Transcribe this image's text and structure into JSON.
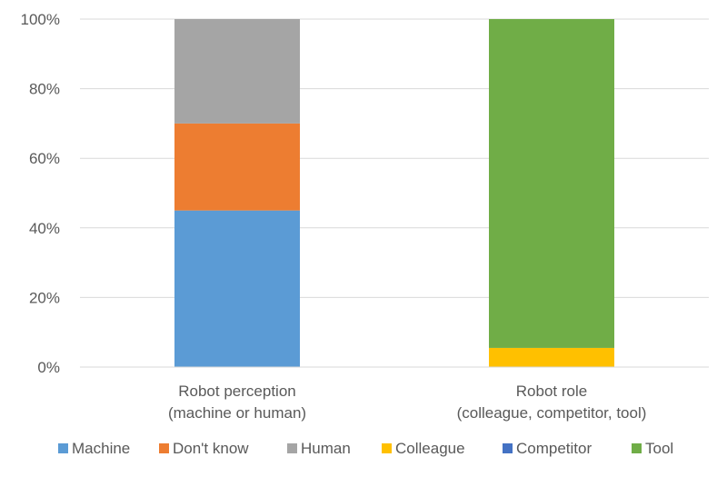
{
  "chart_data": {
    "type": "bar",
    "stacked": true,
    "percent": true,
    "categories": [
      [
        "Robot perception",
        "(machine or human)"
      ],
      [
        "Robot role",
        "(colleague, competitor, tool)"
      ]
    ],
    "series": [
      {
        "name": "Machine",
        "color": "#5b9bd5",
        "values": [
          45,
          0
        ]
      },
      {
        "name": "Don't know",
        "color": "#ed7d31",
        "values": [
          25,
          0
        ]
      },
      {
        "name": "Human",
        "color": "#a5a5a5",
        "values": [
          30,
          0
        ]
      },
      {
        "name": "Colleague",
        "color": "#ffc000",
        "values": [
          0,
          5.5
        ]
      },
      {
        "name": "Competitor",
        "color": "#4472c4",
        "values": [
          0,
          0
        ]
      },
      {
        "name": "Tool",
        "color": "#70ad47",
        "values": [
          0,
          94.5
        ]
      }
    ],
    "ylim": [
      0,
      100
    ],
    "yticks": [
      "0%",
      "20%",
      "40%",
      "60%",
      "80%",
      "100%"
    ],
    "ytick_values": [
      0,
      20,
      40,
      60,
      80,
      100
    ],
    "grid": true,
    "legend": "bottom"
  }
}
